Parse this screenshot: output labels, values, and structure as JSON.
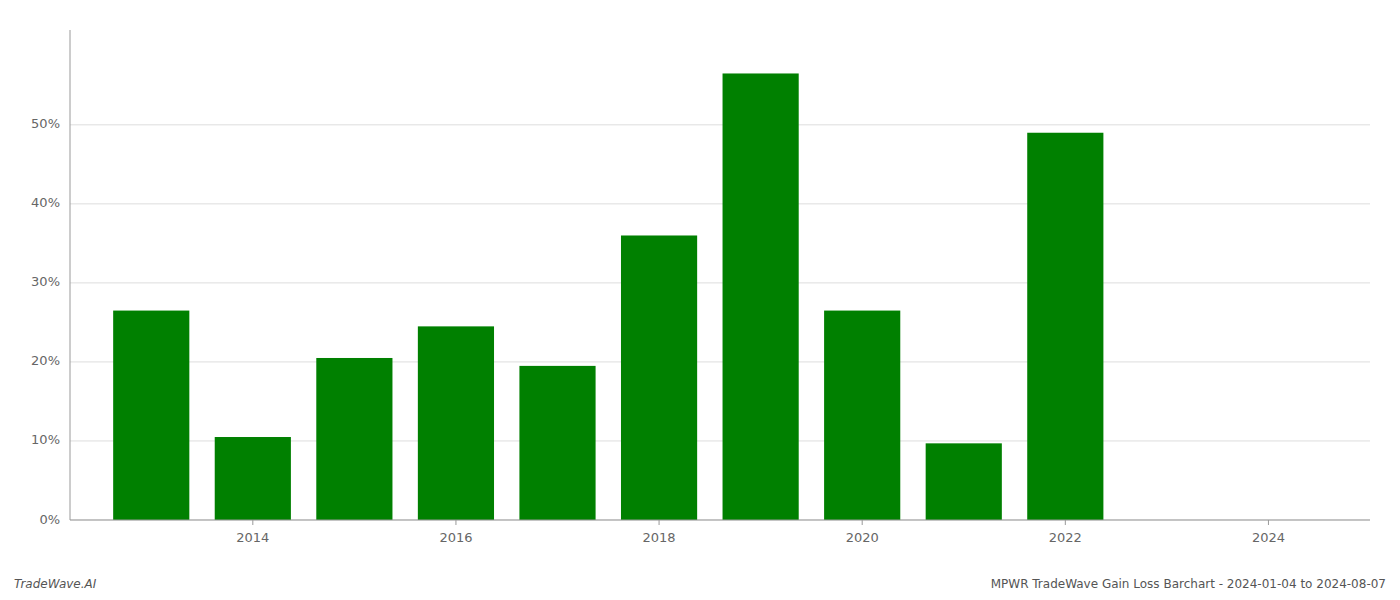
{
  "chart_data": {
    "type": "bar",
    "x": [
      2013,
      2014,
      2015,
      2016,
      2017,
      2018,
      2019,
      2020,
      2021,
      2022
    ],
    "values": [
      0.265,
      0.105,
      0.205,
      0.245,
      0.195,
      0.36,
      0.565,
      0.265,
      0.097,
      0.49
    ],
    "color": "#008000",
    "xlim": [
      2012.2,
      2025.0
    ],
    "xticks": [
      2014,
      2016,
      2018,
      2020,
      2022,
      2024
    ],
    "ylim": [
      0,
      0.62
    ],
    "yticks": [
      {
        "value": 0.0,
        "label": "0%"
      },
      {
        "value": 0.1,
        "label": "10%"
      },
      {
        "value": 0.2,
        "label": "20%"
      },
      {
        "value": 0.3,
        "label": "30%"
      },
      {
        "value": 0.4,
        "label": "40%"
      },
      {
        "value": 0.5,
        "label": "50%"
      }
    ],
    "grid": true,
    "annotations": [
      "TradeWave.AI",
      "MPWR TradeWave Gain Loss Barchart - 2024-01-04 to 2024-08-07"
    ]
  }
}
